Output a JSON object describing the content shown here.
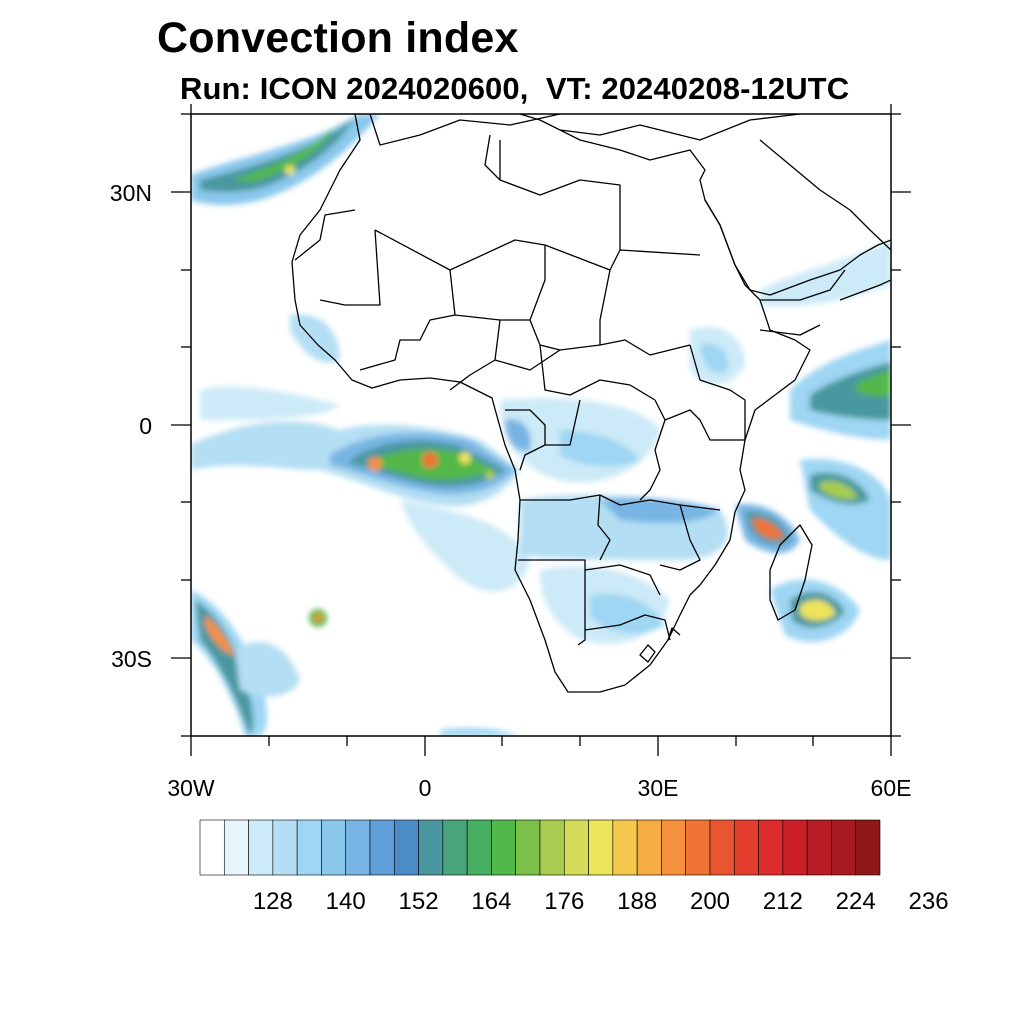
{
  "title": "Convection index",
  "subtitle": "Run: ICON 2024020600,  VT: 20240208-12UTC",
  "axes": {
    "lat_labels": [
      "30N",
      "0",
      "30S"
    ],
    "lon_labels": [
      "30W",
      "0",
      "30E",
      "60E"
    ]
  },
  "colorbar": {
    "labels": [
      "128",
      "140",
      "152",
      "164",
      "176",
      "188",
      "200",
      "212",
      "224",
      "236"
    ],
    "colors": [
      "#ffffff",
      "#e6f4fb",
      "#cceaf7",
      "#b3def3",
      "#9ed6f3",
      "#8ac8ec",
      "#78b5e4",
      "#5f9ed8",
      "#4a8cc8",
      "#4a97a0",
      "#48a47a",
      "#46ae60",
      "#52b84a",
      "#7cc04a",
      "#a8cc50",
      "#d2dc58",
      "#ede45a",
      "#f5c84e",
      "#f6ac44",
      "#f5903c",
      "#f07234",
      "#e95530",
      "#e2402c",
      "#dc2c2c",
      "#cc2028",
      "#b81c24",
      "#a51a20",
      "#901818"
    ]
  }
}
